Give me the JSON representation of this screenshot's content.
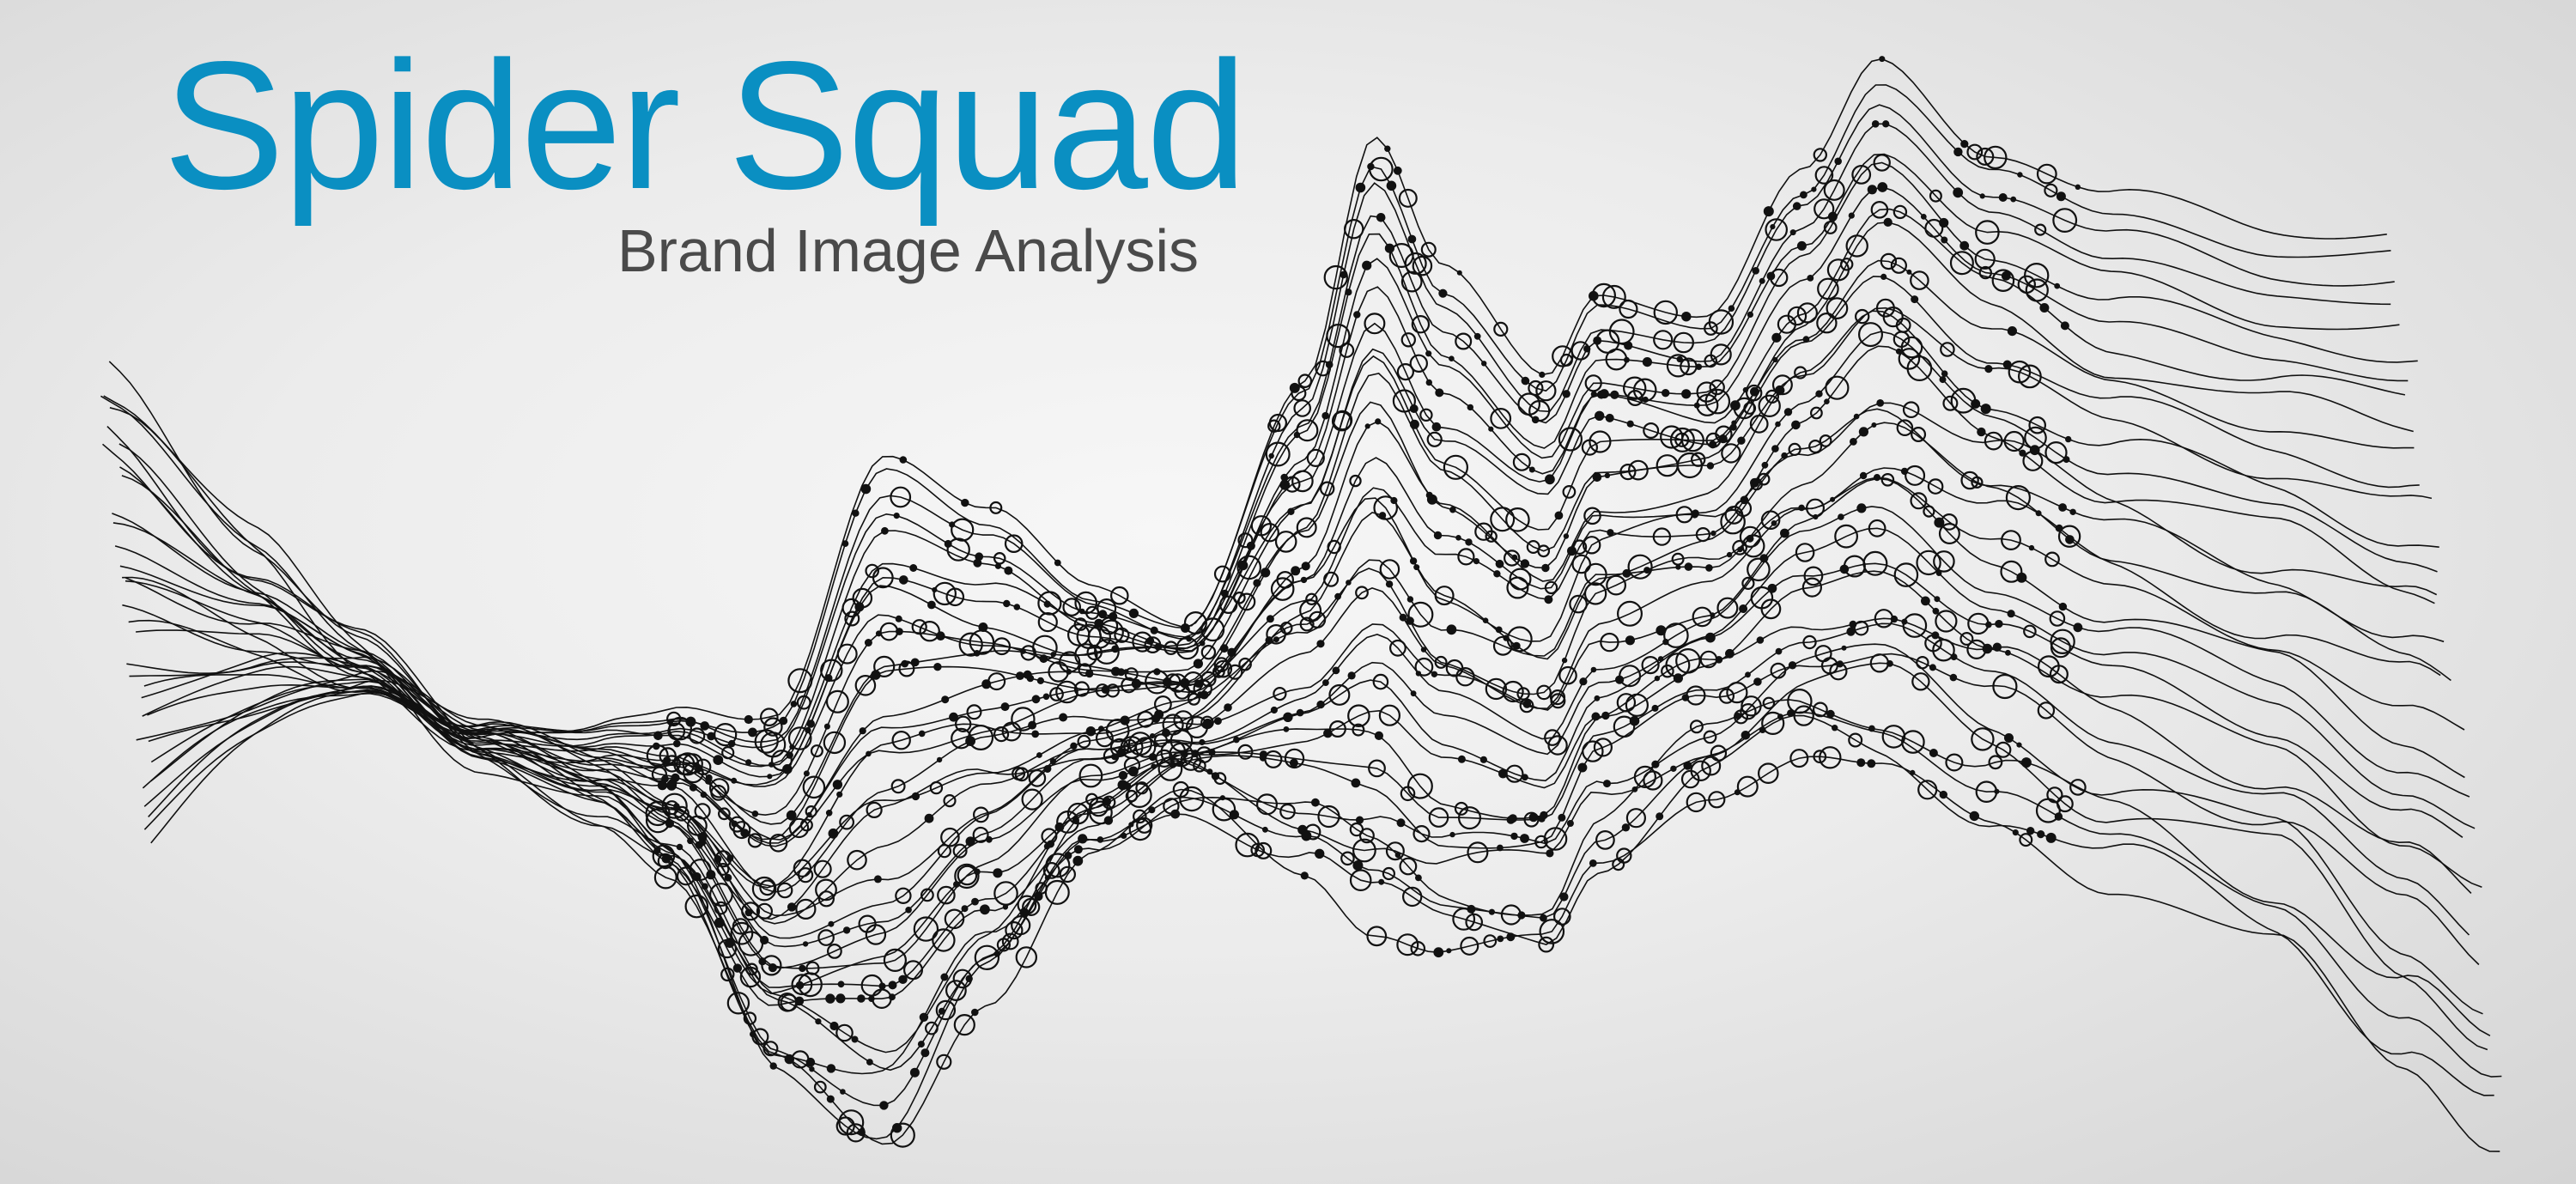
{
  "title": "Spider Squad",
  "subtitle": "Brand Image Analysis",
  "colors": {
    "title": "#0a8fc2",
    "subtitle": "#4a4a4a",
    "lines": "#111111",
    "background": "#e6e6e6"
  }
}
